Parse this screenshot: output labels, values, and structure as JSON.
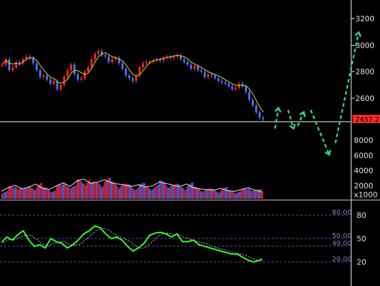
{
  "price_axis": {
    "ticks": [
      "3200",
      "3000",
      "2800",
      "2600"
    ],
    "current_price": "2457.2",
    "colors": {
      "badge": "#ff2a2a",
      "text": "#e0e0e0",
      "axis": "#ffffff"
    }
  },
  "volume_axis": {
    "ticks": [
      "8000",
      "6000",
      "4000",
      "2000"
    ],
    "unit_label": "x1000"
  },
  "rsi_axis": {
    "ticks": [
      "80",
      "50",
      "20"
    ],
    "ref_lines": [
      "80.00",
      "50.00",
      "40.00",
      "20.00"
    ]
  },
  "colors": {
    "up_candle": "#ff2020",
    "down_candle": "#4a6bff",
    "ma_line": "#b4c020",
    "rsi_line": "#33ff33",
    "rsi_signal": "#c8c8c8",
    "forecast_arrows": "#2bd98a",
    "grid": "#5a5aa0",
    "separator": "#d0d0d0"
  },
  "chart_data": [
    {
      "type": "line",
      "name": "price",
      "ylim": [
        2440,
        3300
      ],
      "x": [
        0,
        5,
        10,
        15,
        20,
        25,
        30,
        35,
        40,
        45,
        50,
        55,
        60,
        65,
        70,
        75,
        80,
        85,
        90,
        95,
        100,
        105,
        110,
        115,
        120,
        125,
        130,
        135,
        140,
        145,
        150,
        155,
        160,
        165,
        170,
        175,
        180,
        185,
        190,
        195,
        200,
        205,
        210,
        215,
        220,
        225,
        230,
        235,
        240,
        245,
        250,
        255,
        260,
        265,
        270,
        275,
        280,
        285,
        290,
        295,
        300,
        305,
        310,
        315,
        320,
        325,
        330,
        335,
        340,
        345,
        350,
        355,
        360,
        365,
        370,
        375,
        380
      ],
      "values": [
        2860,
        2900,
        2820,
        2840,
        2880,
        2870,
        2900,
        2920,
        2910,
        2870,
        2820,
        2770,
        2780,
        2750,
        2720,
        2740,
        2680,
        2710,
        2770,
        2820,
        2860,
        2790,
        2750,
        2760,
        2810,
        2840,
        2900,
        2940,
        2960,
        2930,
        2920,
        2880,
        2900,
        2910,
        2870,
        2830,
        2780,
        2760,
        2740,
        2780,
        2840,
        2870,
        2880,
        2880,
        2890,
        2900,
        2890,
        2910,
        2920,
        2910,
        2920,
        2930,
        2900,
        2880,
        2860,
        2830,
        2850,
        2820,
        2810,
        2770,
        2790,
        2780,
        2760,
        2740,
        2730,
        2720,
        2700,
        2680,
        2690,
        2720,
        2700,
        2660,
        2600,
        2560,
        2510,
        2470,
        2460
      ]
    },
    {
      "type": "line",
      "name": "volume",
      "ylim": [
        0,
        9000
      ],
      "x": [
        0,
        10,
        20,
        30,
        40,
        50,
        60,
        70,
        80,
        90,
        100,
        110,
        120,
        130,
        140,
        150,
        160,
        170,
        180,
        190,
        200,
        210,
        220,
        230,
        240,
        250,
        260,
        270,
        280,
        290,
        300,
        310,
        320,
        330,
        340,
        350,
        360,
        370,
        380
      ],
      "values": [
        1200,
        1800,
        2200,
        1600,
        1900,
        2400,
        1700,
        1500,
        2100,
        2600,
        2000,
        2900,
        3200,
        2500,
        2700,
        3100,
        2600,
        2400,
        2200,
        2000,
        2300,
        1900,
        2100,
        2700,
        2500,
        2200,
        2000,
        2400,
        1800,
        1600,
        1500,
        1400,
        1700,
        1300,
        1200,
        1500,
        1800,
        1400,
        1100
      ]
    },
    {
      "type": "line",
      "name": "rsi",
      "ylim": [
        0,
        100
      ],
      "x": [
        0,
        8,
        16,
        24,
        32,
        40,
        48,
        56,
        64,
        72,
        80,
        88,
        96,
        104,
        112,
        120,
        128,
        136,
        144,
        152,
        160,
        168,
        176,
        184,
        192,
        200,
        208,
        216,
        224,
        232,
        240,
        248,
        256,
        264,
        272,
        280,
        288,
        296,
        304,
        312,
        320,
        328,
        336,
        344,
        352,
        360,
        368,
        376,
        380
      ],
      "values": [
        45,
        52,
        48,
        55,
        60,
        48,
        40,
        42,
        38,
        50,
        46,
        44,
        38,
        42,
        48,
        56,
        60,
        66,
        64,
        56,
        50,
        52,
        48,
        40,
        34,
        38,
        44,
        54,
        57,
        58,
        56,
        52,
        56,
        46,
        46,
        48,
        42,
        40,
        38,
        36,
        34,
        32,
        30,
        30,
        26,
        22,
        20,
        22,
        24
      ]
    }
  ]
}
